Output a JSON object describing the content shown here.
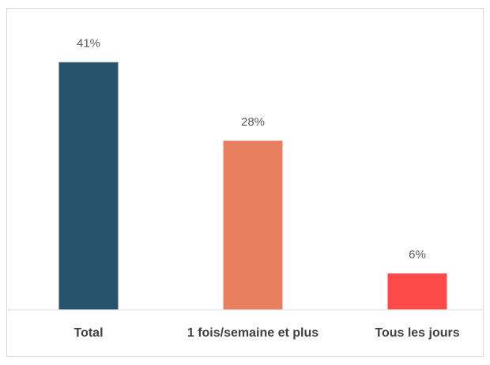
{
  "chart_data": {
    "type": "bar",
    "categories": [
      "Total",
      "1 fois/semaine et plus",
      "Tous les jours"
    ],
    "values": [
      41,
      28,
      6
    ],
    "value_labels": [
      "41%",
      "28%",
      "6%"
    ],
    "colors": [
      "#27536b",
      "#e8805f",
      "#ff4a4a"
    ],
    "ylim": [
      0,
      50
    ]
  }
}
